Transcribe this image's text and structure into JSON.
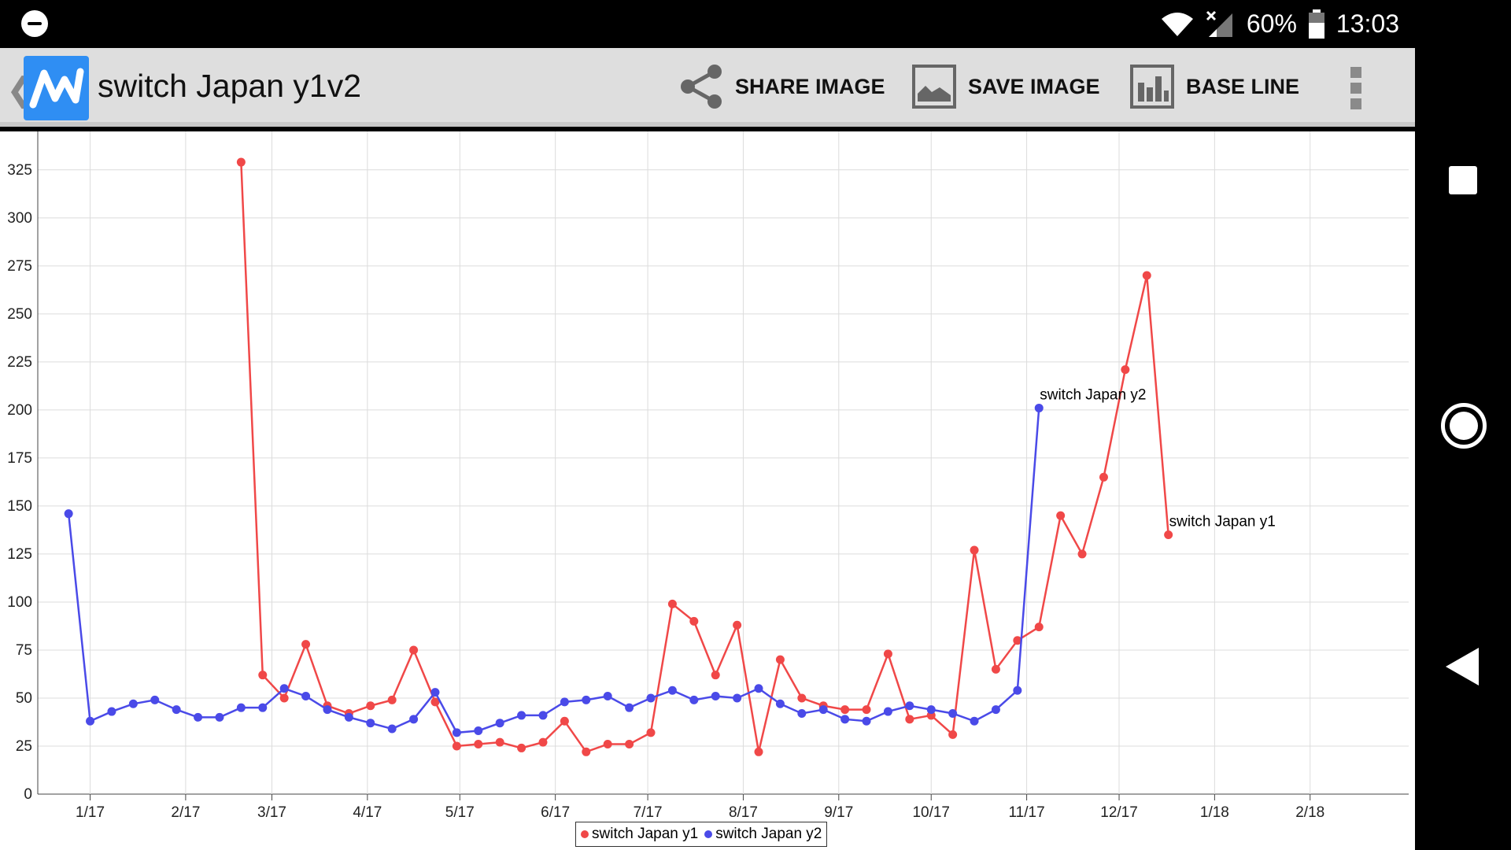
{
  "status_bar": {
    "battery": "60%",
    "time": "13:03"
  },
  "app_bar": {
    "title": "switch Japan y1v2",
    "actions": [
      {
        "label": "SHARE IMAGE",
        "icon": "share-icon"
      },
      {
        "label": "SAVE IMAGE",
        "icon": "image-icon"
      },
      {
        "label": "BASE LINE",
        "icon": "bar-chart-icon"
      }
    ]
  },
  "chart_data": {
    "type": "line",
    "title": "",
    "xlabel": "",
    "ylabel": "",
    "ylim": [
      0,
      345
    ],
    "yticks": [
      0,
      25,
      50,
      75,
      100,
      125,
      150,
      175,
      200,
      225,
      250,
      275,
      300,
      325
    ],
    "xticks": [
      "1/17",
      "2/17",
      "3/17",
      "4/17",
      "5/17",
      "6/17",
      "7/17",
      "8/17",
      "9/17",
      "10/17",
      "11/17",
      "12/17",
      "1/18",
      "2/18"
    ],
    "grid": true,
    "legend_position": "bottom-center",
    "series": [
      {
        "name": "switch Japan y1",
        "color": "#f04848",
        "end_label": "switch Japan y1",
        "points": [
          [
            "2017-02-19",
            329
          ],
          [
            "2017-02-26",
            62
          ],
          [
            "2017-03-05",
            50
          ],
          [
            "2017-03-12",
            78
          ],
          [
            "2017-03-19",
            46
          ],
          [
            "2017-03-26",
            42
          ],
          [
            "2017-04-02",
            46
          ],
          [
            "2017-04-09",
            49
          ],
          [
            "2017-04-16",
            75
          ],
          [
            "2017-04-23",
            48
          ],
          [
            "2017-04-30",
            25
          ],
          [
            "2017-05-07",
            26
          ],
          [
            "2017-05-14",
            27
          ],
          [
            "2017-05-21",
            24
          ],
          [
            "2017-05-28",
            27
          ],
          [
            "2017-06-04",
            38
          ],
          [
            "2017-06-11",
            22
          ],
          [
            "2017-06-18",
            26
          ],
          [
            "2017-06-25",
            26
          ],
          [
            "2017-07-02",
            32
          ],
          [
            "2017-07-09",
            99
          ],
          [
            "2017-07-16",
            90
          ],
          [
            "2017-07-23",
            62
          ],
          [
            "2017-07-30",
            88
          ],
          [
            "2017-08-06",
            22
          ],
          [
            "2017-08-13",
            70
          ],
          [
            "2017-08-20",
            50
          ],
          [
            "2017-08-27",
            46
          ],
          [
            "2017-09-03",
            44
          ],
          [
            "2017-09-10",
            44
          ],
          [
            "2017-09-17",
            73
          ],
          [
            "2017-09-24",
            39
          ],
          [
            "2017-10-01",
            41
          ],
          [
            "2017-10-08",
            31
          ],
          [
            "2017-10-15",
            127
          ],
          [
            "2017-10-22",
            65
          ],
          [
            "2017-10-29",
            80
          ],
          [
            "2017-11-05",
            87
          ],
          [
            "2017-11-12",
            145
          ],
          [
            "2017-11-19",
            125
          ],
          [
            "2017-11-26",
            165
          ],
          [
            "2017-12-03",
            221
          ],
          [
            "2017-12-10",
            270
          ],
          [
            "2017-12-17",
            135
          ]
        ]
      },
      {
        "name": "switch Japan y2",
        "color": "#4a4ae8",
        "end_label": "switch Japan y2",
        "points": [
          [
            "2016-12-25",
            146
          ],
          [
            "2017-01-01",
            38
          ],
          [
            "2017-01-08",
            43
          ],
          [
            "2017-01-15",
            47
          ],
          [
            "2017-01-22",
            49
          ],
          [
            "2017-01-29",
            44
          ],
          [
            "2017-02-05",
            40
          ],
          [
            "2017-02-12",
            40
          ],
          [
            "2017-02-19",
            45
          ],
          [
            "2017-02-26",
            45
          ],
          [
            "2017-03-05",
            55
          ],
          [
            "2017-03-12",
            51
          ],
          [
            "2017-03-19",
            44
          ],
          [
            "2017-03-26",
            40
          ],
          [
            "2017-04-02",
            37
          ],
          [
            "2017-04-09",
            34
          ],
          [
            "2017-04-16",
            39
          ],
          [
            "2017-04-23",
            53
          ],
          [
            "2017-04-30",
            32
          ],
          [
            "2017-05-07",
            33
          ],
          [
            "2017-05-14",
            37
          ],
          [
            "2017-05-21",
            41
          ],
          [
            "2017-05-28",
            41
          ],
          [
            "2017-06-04",
            48
          ],
          [
            "2017-06-11",
            49
          ],
          [
            "2017-06-18",
            51
          ],
          [
            "2017-06-25",
            45
          ],
          [
            "2017-07-02",
            50
          ],
          [
            "2017-07-09",
            54
          ],
          [
            "2017-07-16",
            49
          ],
          [
            "2017-07-23",
            51
          ],
          [
            "2017-07-30",
            50
          ],
          [
            "2017-08-06",
            55
          ],
          [
            "2017-08-13",
            47
          ],
          [
            "2017-08-20",
            42
          ],
          [
            "2017-08-27",
            44
          ],
          [
            "2017-09-03",
            39
          ],
          [
            "2017-09-10",
            38
          ],
          [
            "2017-09-17",
            43
          ],
          [
            "2017-09-24",
            46
          ],
          [
            "2017-10-01",
            44
          ],
          [
            "2017-10-08",
            42
          ],
          [
            "2017-10-15",
            38
          ],
          [
            "2017-10-22",
            44
          ],
          [
            "2017-10-29",
            54
          ],
          [
            "2017-11-05",
            201
          ]
        ]
      }
    ]
  }
}
